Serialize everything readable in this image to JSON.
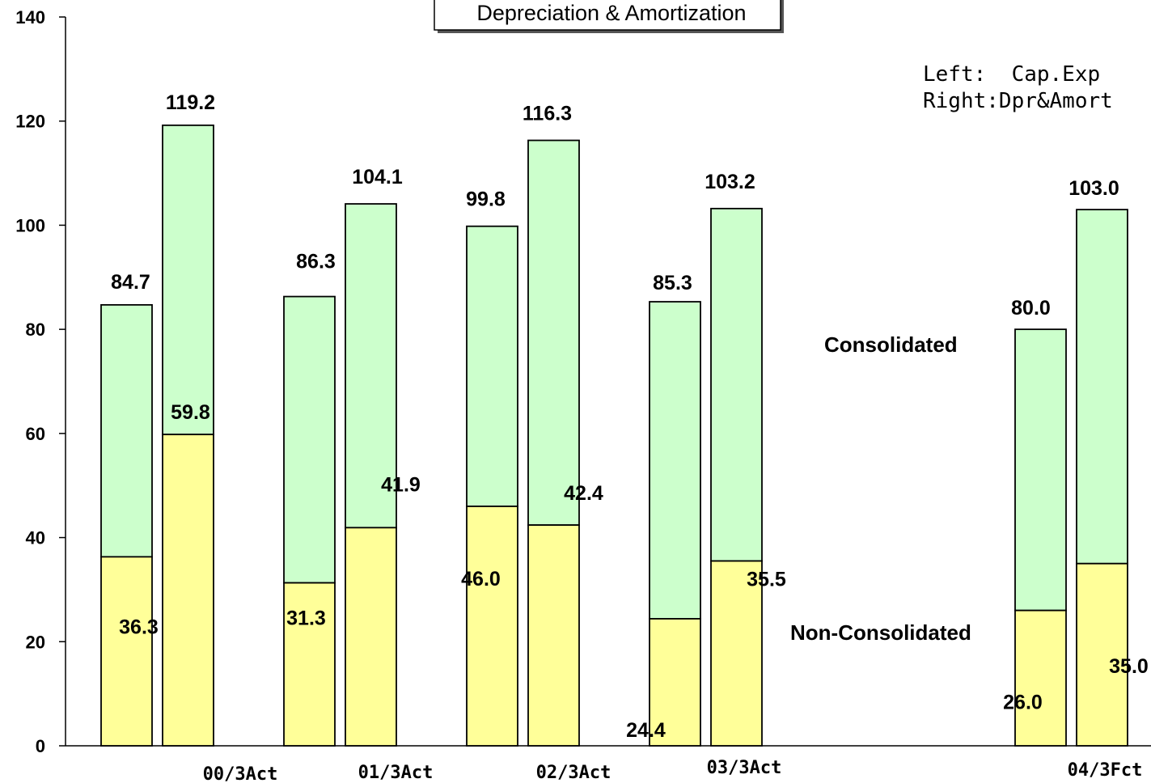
{
  "chart_data": {
    "type": "bar",
    "title": "Depreciation & Amortization",
    "categories": [
      "00/3Act",
      "01/3Act",
      "02/3Act",
      "03/3Act",
      "04/3Fct"
    ],
    "ylim": [
      0,
      140
    ],
    "yticks": [
      0,
      20,
      40,
      60,
      80,
      100,
      120,
      140
    ],
    "grid": false,
    "stacked": true,
    "colors": {
      "non_consolidated": "#ffff99",
      "consolidated": "#ccffcc",
      "outline": "#000000"
    },
    "bars": [
      {
        "category": "00/3Act",
        "pair_position": "left",
        "total": 84.7,
        "total_label": "84.7",
        "non_consolidated": 36.3,
        "non_consolidated_label": "36.3"
      },
      {
        "category": "00/3Act",
        "pair_position": "right",
        "total": 119.2,
        "total_label": "119.2",
        "non_consolidated": 59.8,
        "non_consolidated_label": "59.8"
      },
      {
        "category": "01/3Act",
        "pair_position": "left",
        "total": 86.3,
        "total_label": "86.3",
        "non_consolidated": 31.3,
        "non_consolidated_label": "31.3"
      },
      {
        "category": "01/3Act",
        "pair_position": "right",
        "total": 104.1,
        "total_label": "104.1",
        "non_consolidated": 41.9,
        "non_consolidated_label": "41.9"
      },
      {
        "category": "02/3Act",
        "pair_position": "left",
        "total": 99.8,
        "total_label": "99.8",
        "non_consolidated": 46.0,
        "non_consolidated_label": "46.0"
      },
      {
        "category": "02/3Act",
        "pair_position": "right",
        "total": 116.3,
        "total_label": "116.3",
        "non_consolidated": 42.4,
        "non_consolidated_label": "42.4"
      },
      {
        "category": "03/3Act",
        "pair_position": "left",
        "total": 85.3,
        "total_label": "85.3",
        "non_consolidated": 24.4,
        "non_consolidated_label": "24.4"
      },
      {
        "category": "03/3Act",
        "pair_position": "right",
        "total": 103.2,
        "total_label": "103.2",
        "non_consolidated": 35.5,
        "non_consolidated_label": "35.5"
      },
      {
        "category": "04/3Fct",
        "pair_position": "left",
        "total": 80.0,
        "total_label": "80.0",
        "non_consolidated": 26.0,
        "non_consolidated_label": "26.0"
      },
      {
        "category": "04/3Fct",
        "pair_position": "right",
        "total": 103.0,
        "total_label": "103.0",
        "non_consolidated": 35.0,
        "non_consolidated_label": "35.0"
      }
    ],
    "annotations": {
      "consolidated": "Consolidated",
      "non_consolidated": "Non-Consolidated",
      "legend_line1": "Left:  Cap.Exp",
      "legend_line2": "Right:Dpr&Amort"
    }
  }
}
